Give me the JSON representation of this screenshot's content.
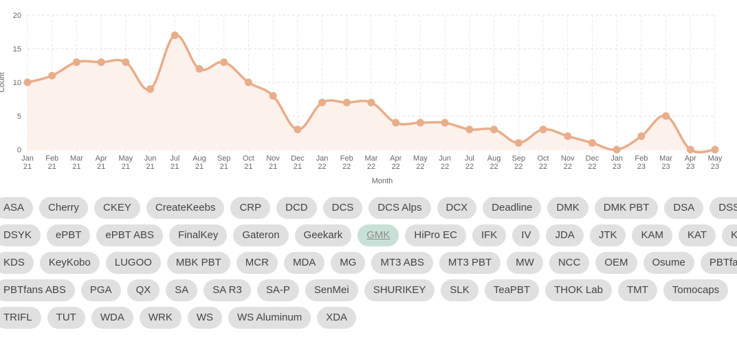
{
  "chart_data": {
    "type": "line",
    "xlabel": "Month",
    "ylabel": "Count",
    "ylim": [
      0,
      20
    ],
    "yticks": [
      0,
      5,
      10,
      15,
      20
    ],
    "grid": true,
    "line_color": "#e8ad8a",
    "fill_color": "#fdf1ec",
    "x": [
      [
        "Jan",
        "21"
      ],
      [
        "Feb",
        "21"
      ],
      [
        "Mar",
        "21"
      ],
      [
        "Apr",
        "21"
      ],
      [
        "May",
        "21"
      ],
      [
        "Jun",
        "21"
      ],
      [
        "Jul",
        "21"
      ],
      [
        "Aug",
        "21"
      ],
      [
        "Sep",
        "21"
      ],
      [
        "Oct",
        "21"
      ],
      [
        "Nov",
        "21"
      ],
      [
        "Dec",
        "21"
      ],
      [
        "Jan",
        "22"
      ],
      [
        "Feb",
        "22"
      ],
      [
        "Mar",
        "22"
      ],
      [
        "Apr",
        "22"
      ],
      [
        "May",
        "22"
      ],
      [
        "Jun",
        "22"
      ],
      [
        "Jul",
        "22"
      ],
      [
        "Aug",
        "22"
      ],
      [
        "Sep",
        "22"
      ],
      [
        "Oct",
        "22"
      ],
      [
        "Nov",
        "22"
      ],
      [
        "Dec",
        "22"
      ],
      [
        "Jan",
        "23"
      ],
      [
        "Feb",
        "23"
      ],
      [
        "Mar",
        "23"
      ],
      [
        "Apr",
        "23"
      ],
      [
        "May",
        "23"
      ]
    ],
    "values": [
      10,
      11,
      13,
      13,
      13,
      9,
      17,
      12,
      13,
      10,
      8,
      3,
      7,
      7,
      7,
      4,
      4,
      4,
      3,
      3,
      1,
      3,
      2,
      1,
      0,
      2,
      5,
      0,
      0
    ]
  },
  "tags": {
    "selected": "GMK",
    "rows": [
      [
        "ASA",
        "Cherry",
        "CKEY",
        "CreateKeebs",
        "CRP",
        "DCD",
        "DCS",
        "DCS Alps",
        "DCX",
        "Deadline",
        "DMK",
        "DMK PBT",
        "DSA",
        "DSS"
      ],
      [
        "DSYK",
        "ePBT",
        "ePBT ABS",
        "FinalKey",
        "Gateron",
        "Geekark",
        "GMK",
        "HiPro EC",
        "IFK",
        "IV",
        "JDA",
        "JTK",
        "KAM",
        "KAT",
        "KBM"
      ],
      [
        "KDS",
        "KeyKobo",
        "LUGOO",
        "MBK PBT",
        "MCR",
        "MDA",
        "MG",
        "MT3 ABS",
        "MT3 PBT",
        "MW",
        "NCC",
        "OEM",
        "Osume",
        "PBTfans"
      ],
      [
        "PBTfans ABS",
        "PGA",
        "QX",
        "SA",
        "SA R3",
        "SA-P",
        "SenMei",
        "SHURIKEY",
        "SLK",
        "TeaPBT",
        "THOK Lab",
        "TMT",
        "Tomocaps"
      ],
      [
        "TRIFL",
        "TUT",
        "WDA",
        "WRK",
        "WS",
        "WS Aluminum",
        "XDA"
      ]
    ]
  }
}
